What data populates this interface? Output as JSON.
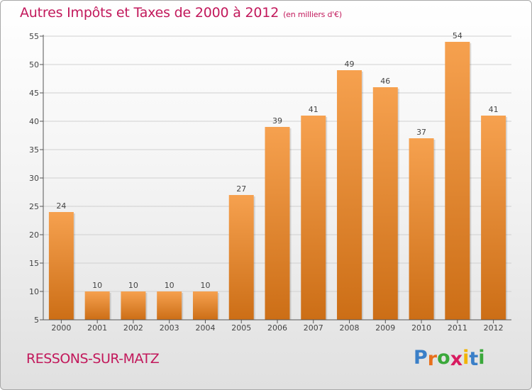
{
  "header": {
    "title": "Autres Impôts et Taxes de 2000 à 2012",
    "unit": "(en milliers d'€)"
  },
  "footer": {
    "place": "RESSONS-SUR-MATZ",
    "logo_letters": [
      "P",
      "r",
      "o",
      "x",
      "i",
      "t",
      "i"
    ],
    "logo_colors": [
      "#3a7fc8",
      "#e8701c",
      "#3aa83a",
      "#d81b60",
      "#f2b300",
      "#3a7fc8",
      "#3aa83a"
    ]
  },
  "colors": {
    "bar_top": "#f6a14f",
    "bar_bottom": "#cc6e16",
    "grid": "#d0d0d0",
    "axis": "#555555",
    "text": "#444444",
    "accent": "#c2185b"
  },
  "chart_data": {
    "type": "bar",
    "categories": [
      "2000",
      "2001",
      "2002",
      "2003",
      "2004",
      "2005",
      "2006",
      "2007",
      "2008",
      "2009",
      "2010",
      "2011",
      "2012"
    ],
    "values": [
      24,
      10,
      10,
      10,
      10,
      27,
      39,
      41,
      49,
      46,
      37,
      54,
      41
    ],
    "data_labels": [
      "24",
      "10",
      "10",
      "10",
      "10",
      "27",
      "39",
      "41",
      "49",
      "46",
      "37",
      "54",
      "41"
    ],
    "y_ticks": [
      5,
      10,
      15,
      20,
      25,
      30,
      35,
      40,
      45,
      50,
      55
    ],
    "ylim": [
      5,
      55
    ],
    "grid": true,
    "xlabel": "",
    "ylabel": ""
  }
}
